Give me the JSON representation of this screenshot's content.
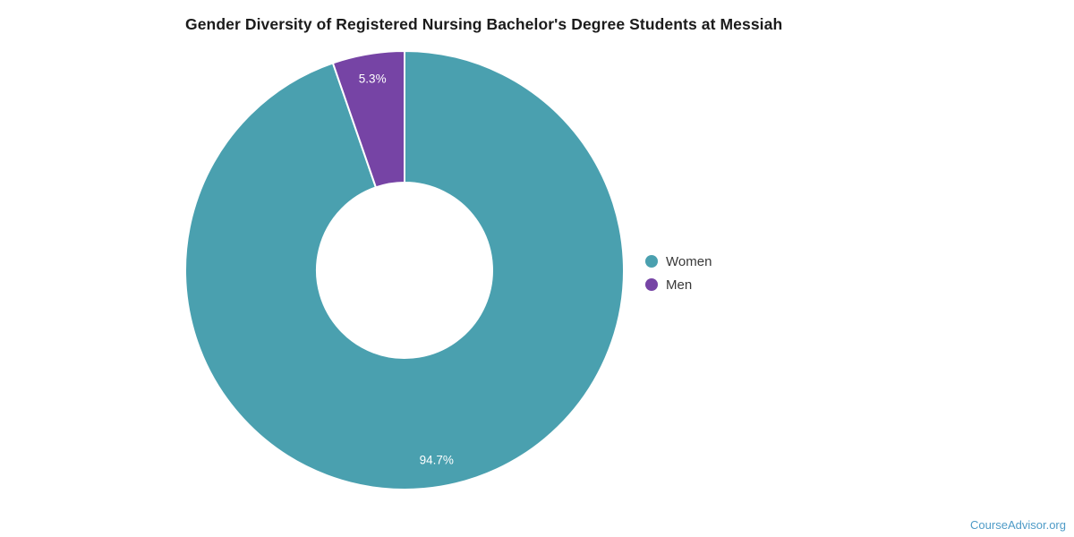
{
  "chart_data": {
    "type": "pie",
    "subtype": "donut",
    "title": "Gender Diversity of Registered Nursing Bachelor's Degree Students at Messiah",
    "labels": [
      "Women",
      "Men"
    ],
    "values": [
      94.7,
      5.3
    ],
    "value_labels": [
      "94.7%",
      "5.3%"
    ],
    "colors": [
      "#4aa0af",
      "#7644a5"
    ],
    "slice_border_color": "#ffffff",
    "data_label_color": "#ffffff",
    "legend_position": "right",
    "start_angle_deg": 0,
    "direction": "clockwise",
    "total": 100
  },
  "legend": {
    "items": [
      {
        "label": "Women",
        "color": "#4aa0af"
      },
      {
        "label": "Men",
        "color": "#7644a5"
      }
    ]
  },
  "footer": {
    "watermark": "CourseAdvisor.org"
  }
}
